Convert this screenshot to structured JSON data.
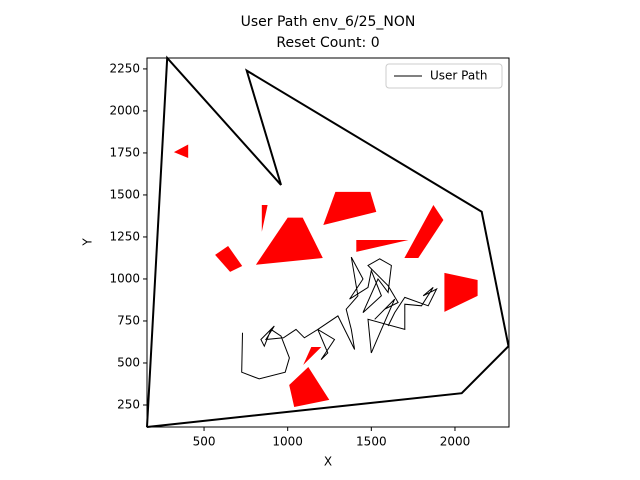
{
  "chart_data": {
    "type": "line",
    "title": "User Path env_6/25_NON",
    "subtitle": "Reset Count: 0",
    "xlabel": "X",
    "ylabel": "Y",
    "xlim": [
      159,
      2323
    ],
    "ylim": [
      119,
      2315
    ],
    "xticks": [
      500,
      1000,
      1500,
      2000
    ],
    "yticks": [
      250,
      500,
      750,
      1000,
      1250,
      1500,
      1750,
      2000,
      2250
    ],
    "legend": "upper right",
    "series": [
      {
        "name": "User Path",
        "color": "#000000",
        "x": [
          730,
          725,
          830,
          985,
          1010,
          960,
          900,
          860,
          840,
          920,
          870,
          975,
          1050,
          1100,
          1180,
          1280,
          1200,
          1240,
          1180,
          1300,
          1400,
          1380,
          1350,
          1420,
          1380,
          1450,
          1370,
          1480,
          1500,
          1560,
          1450,
          1540,
          1600,
          1620,
          1550,
          1480,
          1600,
          1660,
          1580,
          1520,
          1640,
          1560,
          1500,
          1480,
          1700,
          1700,
          1800,
          1870,
          1810,
          1890,
          1840,
          1700,
          1640,
          1600
        ],
        "y": [
          680,
          445,
          405,
          445,
          530,
          660,
          700,
          600,
          640,
          720,
          640,
          650,
          700,
          650,
          700,
          640,
          520,
          560,
          700,
          780,
          580,
          700,
          820,
          900,
          1130,
          1000,
          880,
          950,
          1050,
          900,
          800,
          1000,
          920,
          1080,
          1120,
          1080,
          960,
          860,
          820,
          760,
          880,
          700,
          560,
          760,
          700,
          850,
          840,
          950,
          900,
          940,
          840,
          890,
          800,
          720
        ]
      }
    ],
    "boundary": {
      "color": "#000000",
      "x": [
        159,
        280,
        960,
        755,
        2160,
        2320,
        2040,
        159
      ],
      "y": [
        119,
        2315,
        1560,
        2240,
        1400,
        600,
        320,
        119
      ]
    },
    "obstacle_color": "#ff0000",
    "obstacles": [
      {
        "x": [
          320,
          405,
          405
        ],
        "y": [
          1755,
          1800,
          1720
        ]
      },
      {
        "x": [
          845,
          880,
          845
        ],
        "y": [
          1440,
          1440,
          1280
        ]
      },
      {
        "x": [
          810,
          1000,
          1090,
          1210
        ],
        "y": [
          1085,
          1365,
          1365,
          1125
        ]
      },
      {
        "x": [
          566,
          644,
          728,
          656
        ],
        "y": [
          1143,
          1196,
          1077,
          1042
        ]
      },
      {
        "x": [
          1213,
          1285,
          1494,
          1530
        ],
        "y": [
          1321,
          1518,
          1518,
          1399
        ]
      },
      {
        "x": [
          1410,
          1410,
          1722
        ],
        "y": [
          1232,
          1161,
          1232
        ]
      },
      {
        "x": [
          1698,
          1871,
          1931,
          1781
        ],
        "y": [
          1125,
          1440,
          1351,
          1125
        ]
      },
      {
        "x": [
          1937,
          2135,
          2135,
          1937
        ],
        "y": [
          1036,
          994,
          899,
          804
        ]
      },
      {
        "x": [
          1093,
          1141,
          1201
        ],
        "y": [
          488,
          595,
          595
        ]
      },
      {
        "x": [
          1009,
          1123,
          1249,
          1039
        ],
        "y": [
          369,
          476,
          280,
          238
        ]
      }
    ]
  }
}
